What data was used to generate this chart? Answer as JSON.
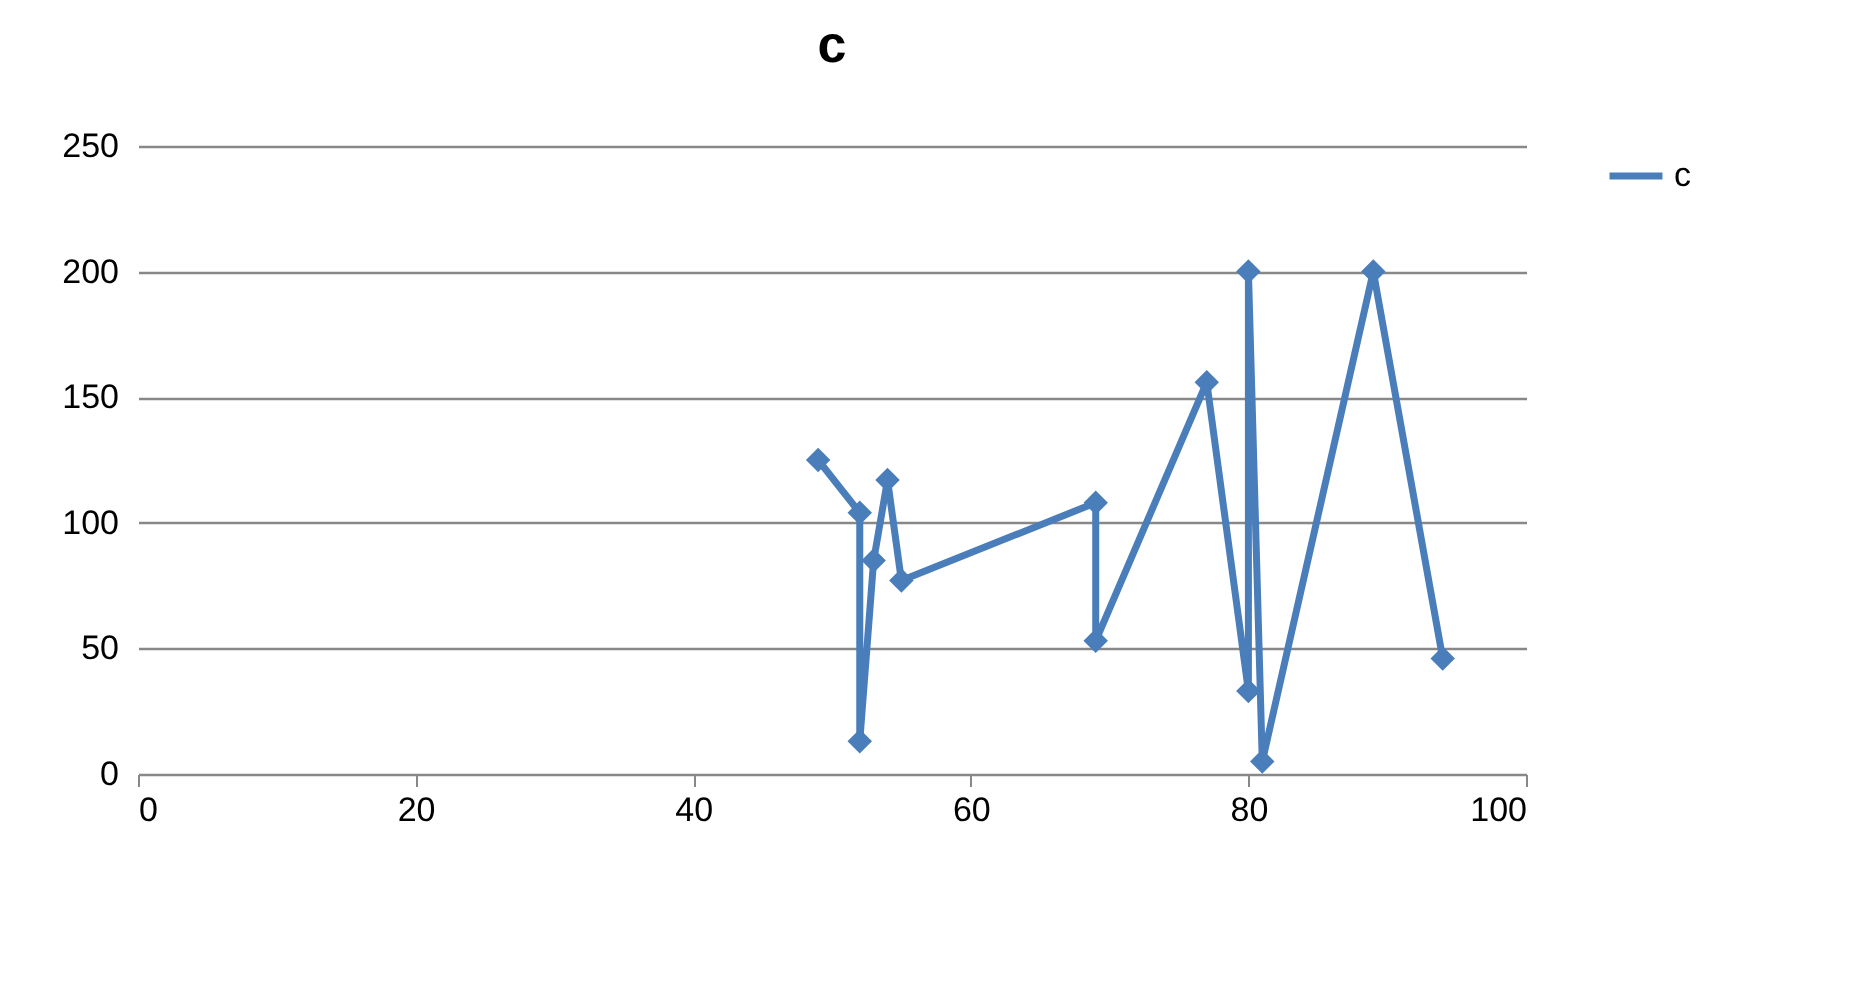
{
  "chart_data": {
    "type": "line",
    "title": "c",
    "x": [
      49,
      52,
      52,
      53,
      54,
      55,
      69,
      69,
      77,
      80,
      80,
      81,
      89,
      94
    ],
    "series": [
      {
        "name": "c",
        "color": "#4a7ebb",
        "values": [
          125,
          104,
          13,
          85,
          117,
          77,
          108,
          53,
          156,
          33,
          200,
          5,
          200,
          46
        ]
      }
    ],
    "xlim": [
      0,
      100
    ],
    "xticks": [
      0,
      20,
      40,
      60,
      80,
      100
    ],
    "ylim": [
      0,
      250
    ],
    "yticks": [
      0,
      50,
      100,
      150,
      200,
      250
    ],
    "grid": "y",
    "legend": "right",
    "marker": "diamond",
    "line_style": "solid"
  }
}
